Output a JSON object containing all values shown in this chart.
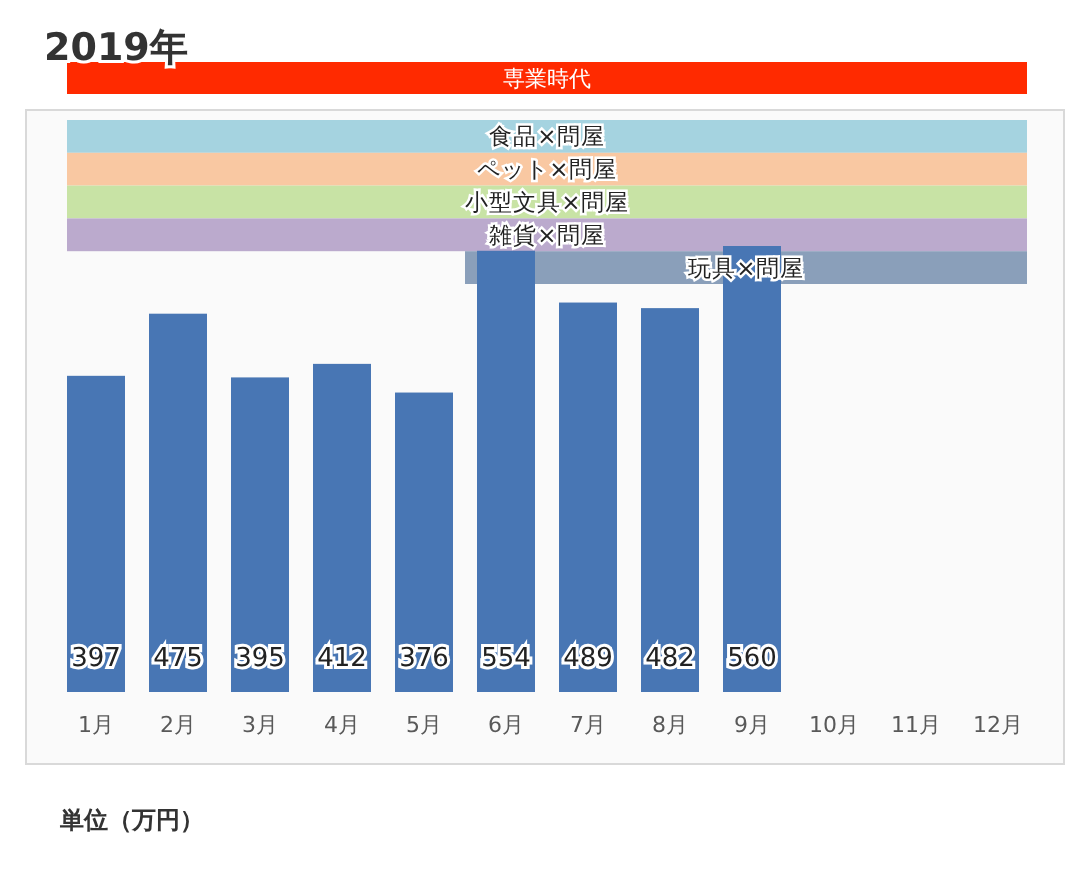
{
  "chart_data": {
    "type": "bar",
    "title": "2019年",
    "categories": [
      "1月",
      "2月",
      "3月",
      "4月",
      "5月",
      "6月",
      "7月",
      "8月",
      "9月",
      "10月",
      "11月",
      "12月"
    ],
    "values": [
      397,
      475,
      395,
      412,
      376,
      554,
      489,
      482,
      560,
      null,
      null,
      null
    ],
    "color": "#4876b4",
    "data_labels": true,
    "annotations": [
      "専業時代",
      "食品×問屋",
      "ペット×問屋",
      "小型文具×問屋",
      "雑貨×問屋",
      "玩具×問屋",
      "単位（万円）"
    ]
  }
}
